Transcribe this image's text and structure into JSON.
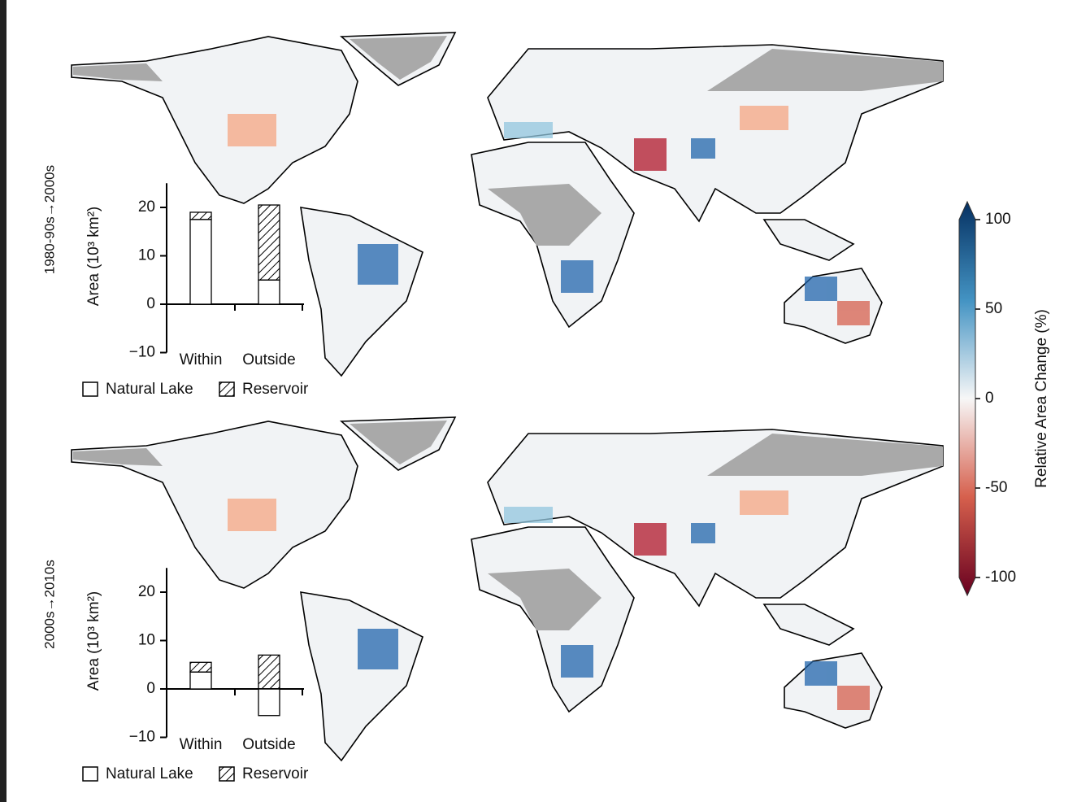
{
  "chart_data": [
    {
      "type": "bar",
      "stacked": true,
      "label": "1980-90s→2000s",
      "y_label": "Area (10³ km²)",
      "categories": [
        "Within",
        "Outside"
      ],
      "series": [
        {
          "name": "Natural Lake",
          "pattern": "none",
          "values": [
            17.5,
            5
          ]
        },
        {
          "name": "Reservoir",
          "pattern": "hatch",
          "values": [
            1.5,
            15.5
          ]
        }
      ],
      "ylim": [
        -10,
        25
      ],
      "yticks": [
        {
          "value": -10,
          "label": "−10"
        },
        0,
        10,
        20
      ]
    },
    {
      "type": "bar",
      "stacked": true,
      "label": "2000s→2010s",
      "y_label": "Area (10³ km²)",
      "categories": [
        "Within",
        "Outside"
      ],
      "series": [
        {
          "name": "Natural Lake",
          "pattern": "none",
          "values": [
            3.5,
            -5.5
          ]
        },
        {
          "name": "Reservoir",
          "pattern": "hatch",
          "values": [
            2,
            7
          ]
        }
      ],
      "ylim": [
        -10,
        25
      ],
      "yticks": [
        {
          "value": -10,
          "label": "−10"
        },
        0,
        10,
        20
      ]
    },
    {
      "type": "colorbar",
      "label": "Relative Area Change (%)",
      "ylim": [
        -100,
        100
      ],
      "yticks": [
        100,
        50,
        0,
        -50,
        -100
      ],
      "colors": [
        "#67001f",
        "#d6604d",
        "#f7f7f7",
        "#4393c3",
        "#053061"
      ]
    }
  ]
}
